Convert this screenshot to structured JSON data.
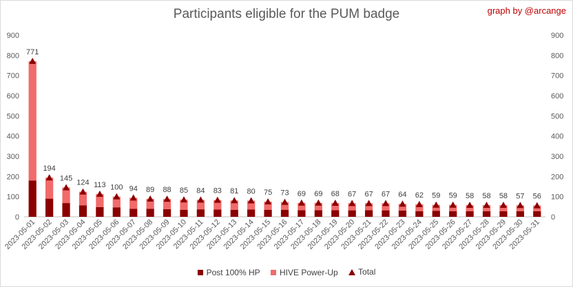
{
  "header": {
    "title": "Participants eligible for the PUM badge",
    "credit": "graph by @arcange"
  },
  "legend": {
    "items": [
      {
        "label": "Post 100% HP",
        "color": "#8b0000",
        "shape": "square"
      },
      {
        "label": "HIVE Power-Up",
        "color": "#f26b6b",
        "shape": "square"
      },
      {
        "label": "Total",
        "color": "#8b0000",
        "shape": "triangle"
      }
    ]
  },
  "chart_data": {
    "type": "bar",
    "stacked": true,
    "title": "Participants eligible for the PUM badge",
    "xlabel": "",
    "ylabel": "",
    "ylim": [
      0,
      900
    ],
    "yticks": [
      0,
      100,
      200,
      300,
      400,
      500,
      600,
      700,
      800,
      900
    ],
    "secondary_yaxis": true,
    "grid": false,
    "legend_position": "bottom",
    "categories": [
      "2023-05-01",
      "2023-05-02",
      "2023-05-03",
      "2023-05-04",
      "2023-05-05",
      "2023-05-06",
      "2023-05-07",
      "2023-05-08",
      "2023-05-09",
      "2023-05-10",
      "2023-05-11",
      "2023-05-12",
      "2023-05-13",
      "2023-05-14",
      "2023-05-15",
      "2023-05-16",
      "2023-05-17",
      "2023-05-18",
      "2023-05-19",
      "2023-05-20",
      "2023-05-21",
      "2023-05-22",
      "2023-05-23",
      "2023-05-24",
      "2023-05-25",
      "2023-05-26",
      "2023-05-27",
      "2023-05-28",
      "2023-05-29",
      "2023-05-30",
      "2023-05-31"
    ],
    "series": [
      {
        "name": "Post 100% HP",
        "color": "#8b0000",
        "values": [
          180,
          90,
          68,
          57,
          48,
          47,
          40,
          40,
          38,
          35,
          37,
          36,
          35,
          36,
          35,
          35,
          33,
          33,
          33,
          32,
          33,
          32,
          31,
          28,
          30,
          28,
          28,
          28,
          28,
          28,
          28
        ]
      },
      {
        "name": "HIVE Power-Up",
        "color": "#f26b6b",
        "values": [
          591,
          104,
          77,
          67,
          65,
          53,
          54,
          49,
          50,
          50,
          47,
          47,
          46,
          44,
          40,
          38,
          36,
          36,
          35,
          35,
          34,
          35,
          33,
          34,
          29,
          31,
          30,
          30,
          30,
          29,
          28
        ]
      },
      {
        "name": "Total",
        "type": "marker",
        "color": "#8b0000",
        "values": [
          771,
          194,
          145,
          124,
          113,
          100,
          94,
          89,
          88,
          85,
          84,
          83,
          81,
          80,
          75,
          73,
          69,
          69,
          68,
          67,
          67,
          67,
          64,
          62,
          59,
          59,
          58,
          58,
          58,
          57,
          56
        ]
      }
    ]
  }
}
